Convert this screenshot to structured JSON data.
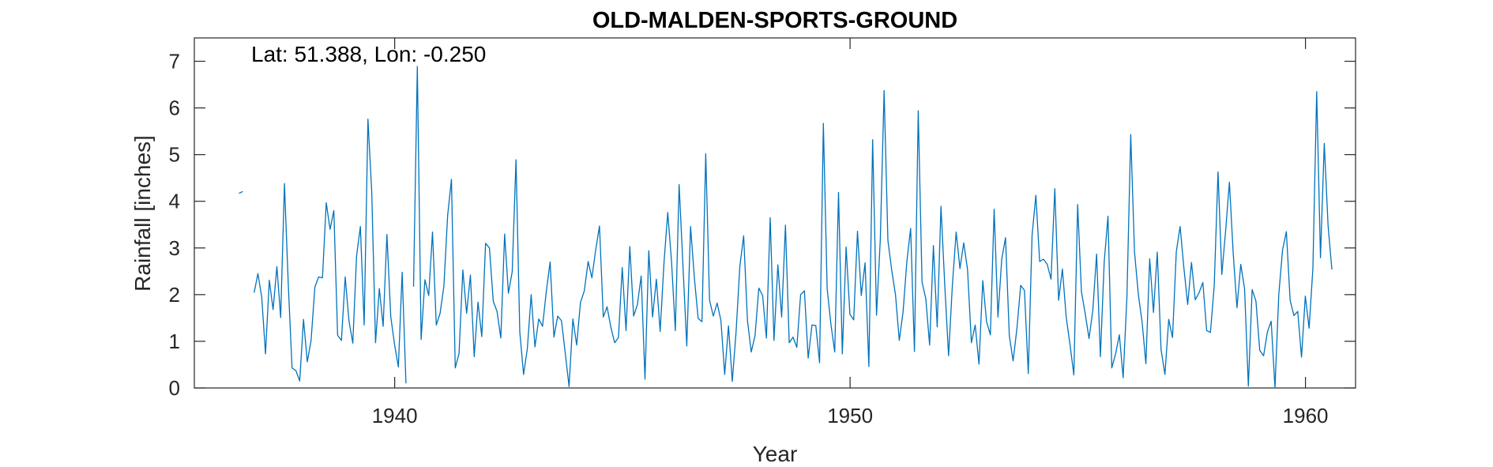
{
  "chart_data": {
    "type": "line",
    "title": "OLD-MALDEN-SPORTS-GROUND",
    "annotation": "Lat: 51.388, Lon: -0.250",
    "xlabel": "Year",
    "ylabel": "Rainfall [inches]",
    "xlim": [
      1935.6,
      1961.1
    ],
    "ylim": [
      0,
      7.5
    ],
    "xticks": [
      1940,
      1950,
      1960
    ],
    "yticks": [
      0,
      1,
      2,
      3,
      4,
      5,
      6,
      7
    ],
    "grid": false,
    "line_color": "#0072BD",
    "series": [
      {
        "x_start": 1936.58,
        "x_step": 0.0833333,
        "values": [
          4.17,
          4.21,
          null,
          null,
          2.04,
          2.45,
          1.95,
          0.73,
          2.31,
          1.68,
          2.6,
          1.51,
          4.38,
          2.23,
          0.43,
          0.37,
          0.15,
          1.47,
          0.56,
          1.02,
          2.16,
          2.38,
          2.36,
          3.97,
          3.4,
          3.8,
          1.13,
          1.02,
          2.38,
          1.43,
          0.96,
          2.83,
          3.46,
          1.35,
          5.76,
          4.2,
          0.97,
          2.13,
          1.32,
          3.29,
          1.52,
          0.93,
          0.45,
          2.48,
          0.1,
          null,
          2.17,
          6.89,
          1.04,
          2.32,
          1.98,
          3.34,
          1.35,
          1.6,
          2.18,
          3.7,
          4.47,
          0.43,
          0.74,
          2.53,
          1.6,
          2.42,
          0.67,
          1.84,
          1.1,
          3.1,
          3.0,
          1.86,
          1.64,
          1.07,
          3.3,
          2.03,
          2.49,
          4.89,
          1.2,
          0.29,
          0.85,
          2.0,
          0.88,
          1.48,
          1.32,
          2.07,
          2.7,
          1.09,
          1.54,
          1.44,
          0.74,
          0.03,
          1.48,
          0.92,
          1.83,
          2.08,
          2.71,
          2.36,
          2.96,
          3.47,
          1.52,
          1.74,
          1.3,
          0.97,
          1.08,
          2.58,
          1.23,
          3.03,
          1.54,
          1.79,
          2.4,
          0.19,
          2.94,
          1.52,
          2.33,
          1.21,
          2.67,
          3.76,
          2.71,
          1.23,
          4.36,
          2.61,
          0.9,
          3.46,
          2.36,
          1.49,
          1.42,
          5.02,
          1.88,
          1.54,
          1.82,
          1.45,
          0.29,
          1.33,
          0.14,
          1.2,
          2.61,
          3.26,
          1.45,
          0.77,
          1.12,
          2.14,
          1.98,
          1.07,
          3.65,
          1.02,
          2.64,
          1.52,
          3.49,
          0.97,
          1.09,
          0.87,
          2.0,
          2.08,
          0.64,
          1.35,
          1.34,
          0.54,
          5.67,
          2.13,
          1.36,
          0.77,
          4.19,
          0.73,
          3.02,
          1.58,
          1.46,
          3.36,
          1.98,
          2.68,
          0.46,
          5.32,
          1.56,
          3.19,
          6.37,
          3.16,
          2.53,
          2.0,
          1.02,
          1.63,
          2.71,
          3.42,
          0.78,
          5.94,
          2.27,
          1.91,
          0.92,
          3.05,
          1.31,
          3.89,
          2.2,
          0.69,
          2.2,
          3.34,
          2.56,
          3.11,
          2.54,
          0.97,
          1.35,
          0.51,
          2.3,
          1.42,
          1.14,
          3.83,
          1.52,
          2.76,
          3.22,
          1.12,
          0.58,
          1.27,
          2.2,
          2.09,
          0.31,
          3.27,
          4.13,
          2.71,
          2.76,
          2.65,
          2.33,
          4.27,
          1.88,
          2.55,
          1.52,
          0.92,
          0.28,
          3.93,
          2.06,
          1.59,
          1.06,
          1.66,
          2.87,
          0.67,
          2.69,
          3.68,
          0.43,
          0.73,
          1.14,
          0.22,
          1.96,
          5.43,
          2.91,
          2.01,
          1.41,
          0.52,
          2.77,
          1.62,
          2.91,
          0.82,
          0.29,
          1.47,
          1.08,
          2.92,
          3.46,
          2.57,
          1.79,
          2.69,
          1.89,
          2.04,
          2.26,
          1.23,
          1.19,
          2.2,
          4.63,
          2.43,
          3.36,
          4.41,
          2.89,
          1.72,
          2.65,
          2.13,
          0.04,
          2.11,
          1.86,
          0.81,
          0.69,
          1.2,
          1.43,
          0.0,
          2.0,
          2.96,
          3.35,
          1.88,
          1.55,
          1.64,
          0.66,
          1.97,
          1.28,
          2.56,
          6.35,
          2.79,
          5.24,
          3.49,
          2.54
        ]
      }
    ]
  }
}
